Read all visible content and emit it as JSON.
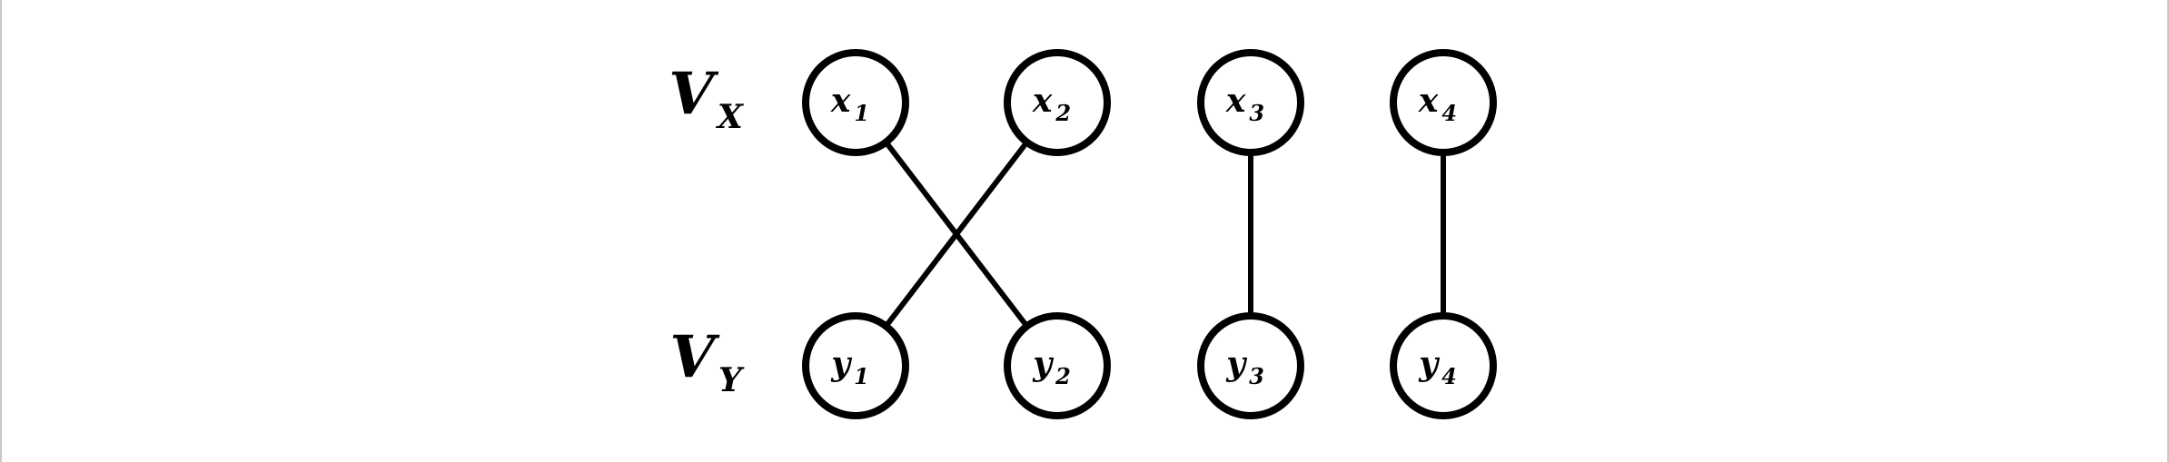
{
  "diagram": {
    "set_labels": [
      {
        "id": "VX",
        "main": "V",
        "sub": "X",
        "row": "top"
      },
      {
        "id": "VY",
        "main": "V",
        "sub": "Y",
        "row": "bottom"
      }
    ],
    "nodes": [
      {
        "id": "x1",
        "main": "x",
        "sub": "1",
        "row": "top"
      },
      {
        "id": "x2",
        "main": "x",
        "sub": "2",
        "row": "top"
      },
      {
        "id": "x3",
        "main": "x",
        "sub": "3",
        "row": "top"
      },
      {
        "id": "x4",
        "main": "x",
        "sub": "4",
        "row": "top"
      },
      {
        "id": "y1",
        "main": "y",
        "sub": "1",
        "row": "bottom"
      },
      {
        "id": "y2",
        "main": "y",
        "sub": "2",
        "row": "bottom"
      },
      {
        "id": "y3",
        "main": "y",
        "sub": "3",
        "row": "bottom"
      },
      {
        "id": "y4",
        "main": "y",
        "sub": "4",
        "row": "bottom"
      }
    ],
    "edges": [
      {
        "from": "x1",
        "to": "y2"
      },
      {
        "from": "x2",
        "to": "y1"
      },
      {
        "from": "x3",
        "to": "y3"
      },
      {
        "from": "x4",
        "to": "y4"
      }
    ]
  }
}
